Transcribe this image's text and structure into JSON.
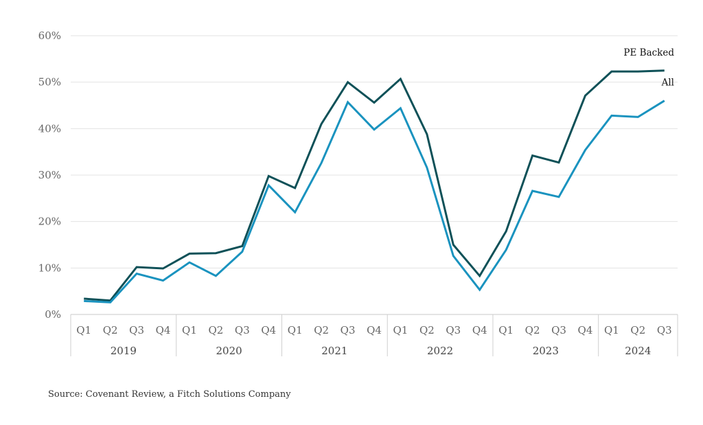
{
  "source": "Source: Covenant Review, a Fitch Solutions Company",
  "chart_data": {
    "type": "line",
    "title": "",
    "xlabel": "",
    "ylabel": "",
    "ylim": [
      0,
      60
    ],
    "y_ticks": [
      0,
      10,
      20,
      30,
      40,
      50,
      60
    ],
    "y_tick_labels": [
      "0%",
      "10%",
      "20%",
      "30%",
      "40%",
      "50%",
      "60%"
    ],
    "grid": "horizontal",
    "categories": [
      "Q1",
      "Q2",
      "Q3",
      "Q4",
      "Q1",
      "Q2",
      "Q3",
      "Q4",
      "Q1",
      "Q2",
      "Q3",
      "Q4",
      "Q1",
      "Q2",
      "Q3",
      "Q4",
      "Q1",
      "Q2",
      "Q3",
      "Q4",
      "Q1",
      "Q2",
      "Q3"
    ],
    "groups": [
      {
        "label": "2019",
        "count": 4
      },
      {
        "label": "2020",
        "count": 4
      },
      {
        "label": "2021",
        "count": 4
      },
      {
        "label": "2022",
        "count": 4
      },
      {
        "label": "2023",
        "count": 4
      },
      {
        "label": "2024",
        "count": 3
      }
    ],
    "series": [
      {
        "name": "PE Backed",
        "color": "#0f5158",
        "values": [
          3.4,
          3.0,
          10.2,
          9.9,
          13.1,
          13.2,
          14.7,
          29.8,
          27.2,
          41.0,
          50.0,
          45.6,
          50.7,
          38.8,
          15.0,
          8.3,
          17.9,
          34.2,
          32.7,
          47.1,
          52.3,
          52.3,
          52.5
        ]
      },
      {
        "name": "All",
        "color": "#1a93bf",
        "values": [
          2.9,
          2.6,
          8.8,
          7.3,
          11.2,
          8.3,
          13.5,
          27.8,
          22.0,
          32.6,
          45.7,
          39.8,
          44.4,
          31.6,
          12.6,
          5.3,
          13.9,
          26.6,
          25.3,
          35.4,
          42.8,
          42.5,
          46.0
        ]
      }
    ]
  }
}
